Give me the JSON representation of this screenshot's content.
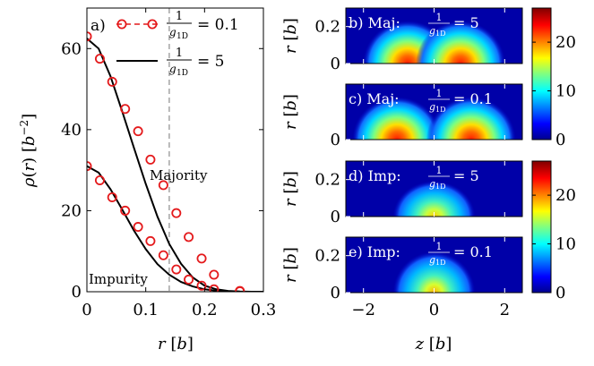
{
  "colors": {
    "marker": "#e41a1c",
    "line": "#000000",
    "dashed": "#777777",
    "colormap": [
      "#00008f",
      "#0000ff",
      "#0080ff",
      "#00ffff",
      "#80ff80",
      "#ffff00",
      "#ff8000",
      "#ff0000",
      "#800000"
    ]
  },
  "chart_data": [
    {
      "type": "line",
      "panel": "a)",
      "xlabel": "r [b]",
      "ylabel": "ρ(r) [b⁻²]",
      "xlim": [
        0,
        0.3
      ],
      "ylim": [
        0,
        70
      ],
      "xticks": [
        "0",
        "0.1",
        "0.2",
        "0.3"
      ],
      "yticks": [
        "0",
        "20",
        "40",
        "60"
      ],
      "legend": [
        "1/g1D = 0.1",
        "1/g1D = 5"
      ],
      "legend_placement": "top-right",
      "dashed_vline_x": 0.14,
      "annotations": [
        "Majority",
        "Impurity"
      ],
      "series": [
        {
          "name": "1/g1D = 0.1",
          "group": "Majority",
          "style": "markers",
          "x": [
            0,
            0.022,
            0.043,
            0.065,
            0.087,
            0.108,
            0.13,
            0.152,
            0.173,
            0.195,
            0.216,
            0.26
          ],
          "y": [
            63,
            57.5,
            51.8,
            45.1,
            39.6,
            32.6,
            26.3,
            19.4,
            13.5,
            8.2,
            4.2,
            0.2
          ]
        },
        {
          "name": "1/g1D = 5",
          "group": "Majority",
          "style": "solid",
          "x": [
            0,
            0.02,
            0.04,
            0.06,
            0.08,
            0.1,
            0.12,
            0.14,
            0.16,
            0.18,
            0.2,
            0.22,
            0.24,
            0.26,
            0.28,
            0.3
          ],
          "y": [
            62.5,
            60,
            53.2,
            44.5,
            35.5,
            26.6,
            18.5,
            11.8,
            6.9,
            3.5,
            1.5,
            0.6,
            0.2,
            0.05,
            0,
            0
          ]
        },
        {
          "name": "1/g1D = 0.1",
          "group": "Impurity",
          "style": "markers",
          "x": [
            0,
            0.022,
            0.043,
            0.065,
            0.087,
            0.108,
            0.13,
            0.152,
            0.173,
            0.195,
            0.216,
            0.26
          ],
          "y": [
            31,
            27.5,
            23.3,
            20,
            16,
            12.5,
            9,
            5.5,
            3,
            1.5,
            0.6,
            0.1
          ]
        },
        {
          "name": "1/g1D = 5",
          "group": "Impurity",
          "style": "solid",
          "x": [
            0,
            0.02,
            0.04,
            0.06,
            0.08,
            0.1,
            0.12,
            0.14,
            0.16,
            0.18,
            0.2,
            0.22,
            0.24,
            0.26,
            0.28,
            0.3
          ],
          "y": [
            31,
            29.4,
            25.3,
            20.3,
            15.1,
            10.5,
            6.8,
            4.2,
            2.4,
            1.3,
            0.6,
            0.25,
            0.1,
            0.03,
            0,
            0
          ]
        }
      ]
    },
    {
      "type": "heatmap",
      "panel": "b)",
      "species": "Maj",
      "g_label": "= 5",
      "xlabel": "",
      "ylabel": "r [b]",
      "yticks": [
        "0",
        "0.2"
      ],
      "xlim": [
        -2.5,
        2.5
      ],
      "peaks_z": [
        -0.75,
        0.75
      ],
      "shared_colorbar": [
        0,
        20,
        10
      ]
    },
    {
      "type": "heatmap",
      "panel": "c)",
      "species": "Maj",
      "g_label": "= 0.1",
      "xlabel": "",
      "ylabel": "r [b]",
      "yticks": [
        "0"
      ],
      "xlim": [
        -2.5,
        2.5
      ],
      "peaks_z": [
        -1.05,
        1.05
      ],
      "colorbar": {
        "ticks": [
          "20",
          "10",
          "0"
        ],
        "range": [
          0,
          27
        ]
      }
    },
    {
      "type": "heatmap",
      "panel": "d)",
      "species": "Imp",
      "g_label": "= 5",
      "xlabel": "",
      "ylabel": "r [b]",
      "yticks": [
        "0",
        "0.2"
      ],
      "xlim": [
        -2.5,
        2.5
      ],
      "peaks_z": [
        0
      ]
    },
    {
      "type": "heatmap",
      "panel": "e)",
      "species": "Imp",
      "g_label": "= 0.1",
      "xlabel": "z [b]",
      "ylabel": "r [b]",
      "yticks": [
        "0",
        "0.2"
      ],
      "xticks": [
        "−2",
        "0",
        "2"
      ],
      "xlim": [
        -2.5,
        2.5
      ],
      "peaks_z": [
        0
      ],
      "colorbar": {
        "ticks": [
          "20",
          "10",
          "0"
        ],
        "range": [
          0,
          27
        ]
      }
    }
  ]
}
